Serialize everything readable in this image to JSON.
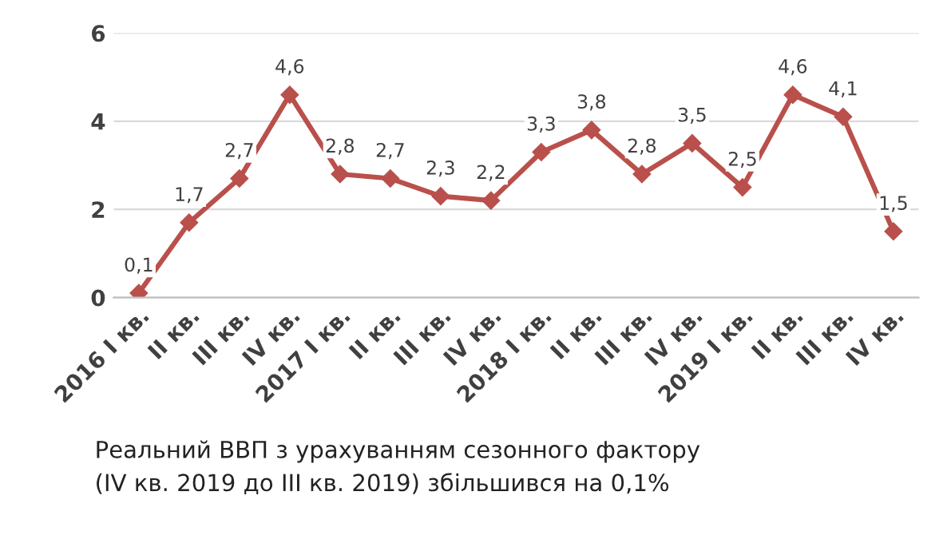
{
  "chart_data": {
    "type": "line",
    "categories": [
      "2016 I кв.",
      "II кв.",
      "III кв.",
      "IV кв.",
      "2017 I кв.",
      "II кв.",
      "III кв.",
      "IV кв.",
      "2018 I кв.",
      "II кв.",
      "III кв.",
      "IV кв.",
      "2019 I кв.",
      "II кв.",
      "III кв.",
      "IV кв."
    ],
    "series": [
      {
        "color": "#b9504b",
        "values": [
          0.1,
          1.7,
          2.7,
          4.6,
          2.8,
          2.7,
          2.3,
          2.2,
          3.3,
          3.8,
          2.8,
          3.5,
          2.5,
          4.6,
          4.1,
          1.5
        ],
        "value_labels": [
          "0,1",
          "1,7",
          "2,7",
          "4,6",
          "2,8",
          "2,7",
          "2,3",
          "2,2",
          "3,3",
          "3,8",
          "2,8",
          "3,5",
          "2,5",
          "4,6",
          "4,1",
          "1,5"
        ]
      }
    ],
    "ylim": [
      0,
      6
    ],
    "yticks": [
      0,
      2,
      4,
      6
    ],
    "grid": "y",
    "marker": "diamond",
    "line_style": "solid",
    "annotations": [
      "Реальний ВВП з урахуванням сезонного фактору\n(IV кв. 2019 до III кв. 2019) збільшився на 0,1%"
    ]
  }
}
